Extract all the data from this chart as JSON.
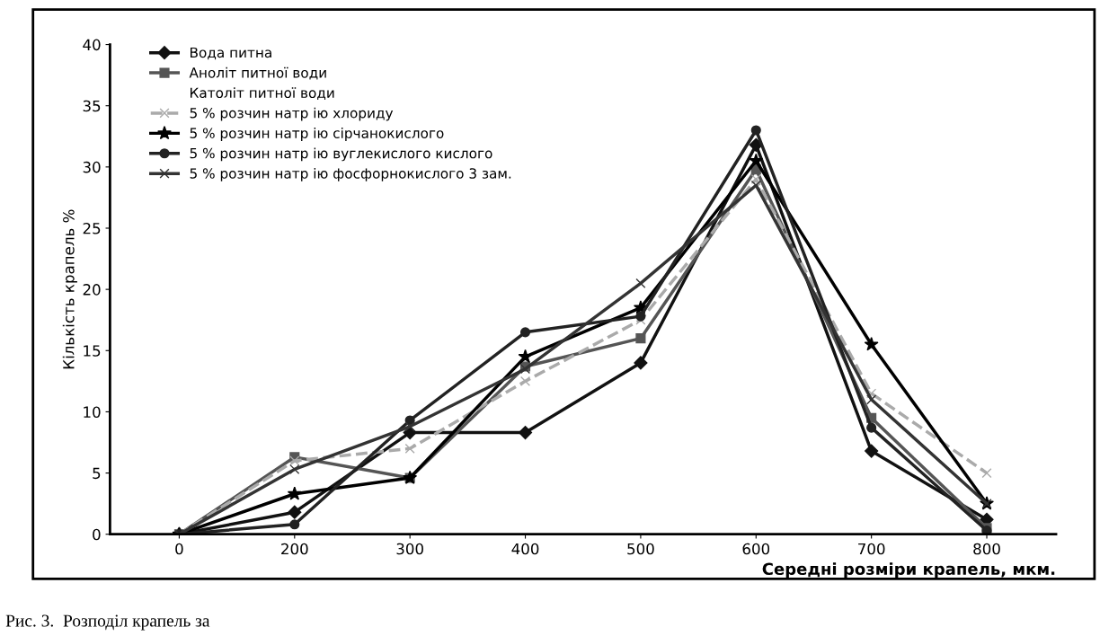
{
  "chart_data": {
    "type": "line",
    "categories": [
      "0",
      "200",
      "300",
      "400",
      "500",
      "600",
      "700",
      "800"
    ],
    "ylabel": "Кількість крапель %",
    "xlabel": "Середні розміри крапель, мкм.",
    "annotations": [
      "Рис. 3.  Розподіл крапель за"
    ],
    "ylim": [
      0,
      40
    ],
    "yticks": [
      0,
      5,
      10,
      15,
      20,
      25,
      30,
      35,
      40
    ],
    "grid": false,
    "legend": "top left",
    "series": [
      {
        "name": "Вода питна",
        "color": "#111111",
        "marker": "diamond",
        "values": [
          0,
          1.8,
          8.3,
          8.3,
          14,
          31.8,
          6.8,
          1.2
        ]
      },
      {
        "name": "Аноліт питної води",
        "color": "#555555",
        "marker": "square",
        "values": [
          0,
          6.3,
          4.6,
          13.7,
          16,
          29.8,
          9.5,
          0.5
        ]
      },
      {
        "name": "Католіт питної води",
        "values": [
          null,
          null,
          null,
          null,
          null,
          null,
          null,
          null
        ]
      },
      {
        "name": "5 % розчин натр ію хлориду",
        "color": "#aaaaaa",
        "marker": "cross",
        "line_style": "dashed",
        "values": [
          0,
          6,
          7,
          12.5,
          17.5,
          29,
          11.5,
          5
        ]
      },
      {
        "name": "5 % розчин натр ію сірчанокислого",
        "color": "#000000",
        "marker": "star",
        "values": [
          0,
          3.3,
          4.6,
          14.5,
          18.5,
          30.5,
          15.5,
          2.5
        ]
      },
      {
        "name": "5 % розчин натр ію вуглекислого кислого",
        "color": "#222222",
        "marker": "circle",
        "values": [
          0,
          0.8,
          9.3,
          16.5,
          17.8,
          33,
          8.7,
          0.3
        ]
      },
      {
        "name": "5 % розчин натр ію фосфорнокислого 3 зам.",
        "color": "#333333",
        "marker": "cross",
        "values": [
          0,
          5.3,
          8.8,
          13.5,
          20.5,
          28.5,
          11,
          2.5
        ]
      }
    ]
  }
}
